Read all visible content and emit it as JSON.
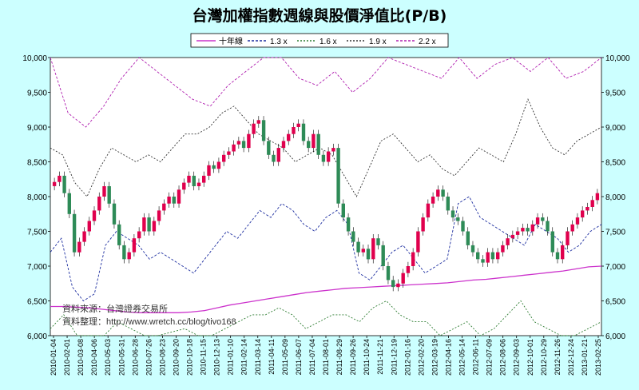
{
  "chart_data": {
    "type": "candlestick",
    "title": "台灣加權指數週線與股價淨值比(P/B)",
    "legend": {
      "placement": "top-center",
      "entries": [
        "十年線",
        "1.3 x",
        "1.6 x",
        "1.9 x",
        "2.2 x"
      ]
    },
    "ylim": [
      6000,
      10000
    ],
    "yticks": [
      "6,000",
      "6,500",
      "7,000",
      "7,500",
      "8,000",
      "8,500",
      "9,000",
      "9,500",
      "10,000"
    ],
    "xticks": [
      "2010-01-04",
      "2010-02-01",
      "2010-03-08",
      "2010-04-06",
      "2010-05-03",
      "2010-05-31",
      "2010-06-28",
      "2010-07-26",
      "2010-08-23",
      "2010-09-20",
      "2010-10-18",
      "2010-11-15",
      "2010-12-13",
      "2011-01-10",
      "2011-02-14",
      "2011-03-14",
      "2011-04-11",
      "2011-05-09",
      "2011-06-07",
      "2011-07-04",
      "2011-08-01",
      "2011-08-29",
      "2011-09-26",
      "2011-10-24",
      "2011-11-21",
      "2011-12-19",
      "2012-01-16",
      "2012-02-20",
      "2012-03-19",
      "2012-04-16",
      "2012-05-14",
      "2012-06-11",
      "2012-07-09",
      "2012-08-06",
      "2012-09-03",
      "2012-10-01",
      "2012-10-29",
      "2012-11-26",
      "2012-12-24",
      "2013-01-21",
      "2013-02-25"
    ],
    "index_weekly_close": [
      8210,
      8300,
      8050,
      7750,
      7200,
      7350,
      7500,
      7650,
      7800,
      8000,
      8150,
      7900,
      7600,
      7300,
      7100,
      7200,
      7400,
      7500,
      7700,
      7500,
      7650,
      7800,
      7900,
      8000,
      7900,
      8100,
      8200,
      8300,
      8150,
      8200,
      8300,
      8450,
      8400,
      8500,
      8600,
      8650,
      8750,
      8800,
      8700,
      8900,
      9050,
      9100,
      8800,
      8600,
      8500,
      8700,
      8800,
      8900,
      9000,
      9050,
      8800,
      8700,
      8900,
      8600,
      8500,
      8650,
      8700,
      7900,
      7700,
      7500,
      7350,
      7200,
      7250,
      7100,
      7400,
      7300,
      7000,
      6800,
      6700,
      6750,
      6900,
      7000,
      7200,
      7500,
      7700,
      7900,
      8000,
      8100,
      8000,
      7800,
      7700,
      7650,
      7500,
      7300,
      7200,
      7100,
      7050,
      7200,
      7100,
      7200,
      7300,
      7400,
      7450,
      7500,
      7550,
      7500,
      7600,
      7700,
      7650,
      7500,
      7200,
      7100,
      7300,
      7500,
      7600,
      7700,
      7800,
      7850,
      7950,
      8050
    ],
    "lines": {
      "ten_year_ma": [
        6420,
        6420,
        6410,
        6400,
        6380,
        6360,
        6340,
        6330,
        6330,
        6330,
        6330,
        6340,
        6360,
        6400,
        6440,
        6470,
        6500,
        6530,
        6560,
        6590,
        6620,
        6640,
        6660,
        6680,
        6690,
        6700,
        6710,
        6720,
        6730,
        6740,
        6750,
        6760,
        6780,
        6800,
        6810,
        6830,
        6850,
        6870,
        6890,
        6910,
        6930,
        6960,
        6990,
        7000
      ],
      "pb_1_3": [
        7200,
        7400,
        6700,
        6500,
        6600,
        7300,
        7500,
        7400,
        7300,
        7100,
        7200,
        7100,
        7000,
        6900,
        7100,
        7300,
        7500,
        7400,
        7600,
        7800,
        7700,
        7900,
        7800,
        7600,
        7500,
        7700,
        7800,
        7600,
        6900,
        6800,
        7000,
        7200,
        7300,
        7100,
        6900,
        7000,
        7100,
        7900,
        8000,
        7700,
        7600,
        7500,
        7400,
        7300,
        7600,
        7500,
        7400,
        7200,
        7300,
        7500,
        7600
      ],
      "pb_1_6": [
        6100,
        6300,
        6000,
        5800,
        6000,
        6200,
        6100,
        6000,
        6000,
        6050,
        6100,
        6000,
        6000,
        6100,
        6200,
        6300,
        6300,
        6400,
        6300,
        6100,
        6200,
        6300,
        6300,
        6200,
        6400,
        6500,
        6300,
        6200,
        6200,
        6000,
        6100,
        6200,
        6000,
        6100,
        6300,
        6500,
        6200,
        6100,
        6000,
        6000,
        6100,
        6200
      ],
      "pb_1_9": [
        8700,
        8600,
        8200,
        8000,
        8400,
        8700,
        8600,
        8500,
        8600,
        8500,
        8700,
        8900,
        8900,
        9000,
        9200,
        9300,
        9100,
        8900,
        8800,
        8700,
        8500,
        8600,
        8700,
        8600,
        8300,
        8000,
        8400,
        8800,
        8900,
        8700,
        8500,
        8600,
        8400,
        8300,
        8500,
        8700,
        8600,
        8500,
        8900,
        9400,
        9000,
        8700,
        8600,
        8800,
        8900,
        9000
      ],
      "pb_2_2": [
        10000,
        9200,
        9000,
        9300,
        9700,
        10000,
        9800,
        9600,
        9400,
        9300,
        9600,
        9800,
        10000,
        10000,
        9700,
        9600,
        9800,
        9500,
        9700,
        10000,
        9900,
        9800,
        9700,
        10000,
        9700,
        9900,
        10000,
        9800,
        10000,
        9700,
        9800,
        10000
      ]
    }
  },
  "notes": {
    "source": "資料來源：台灣證券交易所",
    "organizer": "資料整理：http://www.wretch.cc/blog/tivo168"
  },
  "colors": {
    "background": "#ccffff",
    "plot_background": "#ffffff",
    "up": "#e0004d",
    "down": "#2e8b57",
    "ten_year_ma": "#cc33cc",
    "pb_1_3": "#1e2fa0",
    "pb_1_6": "#2e7d32",
    "pb_1_9": "#333333",
    "pb_2_2": "#b020b0"
  }
}
